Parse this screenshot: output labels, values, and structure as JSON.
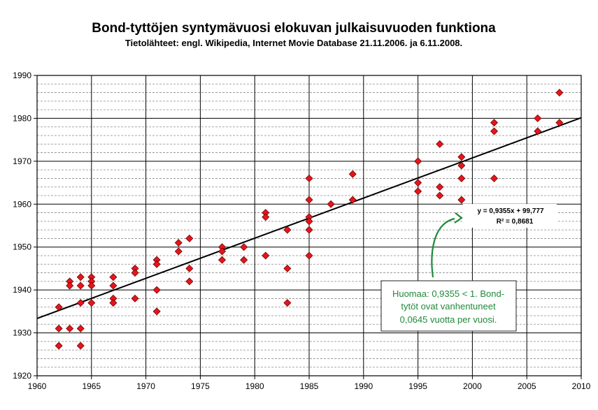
{
  "chart_data": {
    "type": "scatter",
    "title": "Bond-tyttöjen syntymävuosi elokuvan julkaisuvuoden funktiona",
    "subtitle": "Tietolähteet: engl. Wikipedia, Internet Movie Database 21.11.2006. ja 6.11.2008.",
    "xlabel": "",
    "ylabel": "",
    "xlim": [
      1960,
      2010
    ],
    "ylim": [
      1920,
      1990
    ],
    "x_ticks": [
      1960,
      1965,
      1970,
      1975,
      1980,
      1985,
      1990,
      1995,
      2000,
      2005,
      2010
    ],
    "y_ticks": [
      1920,
      1930,
      1940,
      1950,
      1960,
      1970,
      1980,
      1990
    ],
    "x_tick_labels": [
      "1960",
      "1965",
      "1970",
      "1975",
      "1980",
      "1985",
      "1990",
      "1995",
      "2000",
      "2005",
      "2010"
    ],
    "y_tick_labels": [
      "1920",
      "1930",
      "1940",
      "1950",
      "1960",
      "1970",
      "1980",
      "1990"
    ],
    "grid": true,
    "minor_y_grid_step": 2,
    "marker_color": "#e8141b",
    "marker_shape": "diamond",
    "points": [
      [
        1962,
        1936
      ],
      [
        1962,
        1931
      ],
      [
        1962,
        1927
      ],
      [
        1963,
        1942
      ],
      [
        1963,
        1941
      ],
      [
        1963,
        1931
      ],
      [
        1964,
        1943
      ],
      [
        1964,
        1941
      ],
      [
        1964,
        1937
      ],
      [
        1964,
        1931
      ],
      [
        1964,
        1927
      ],
      [
        1965,
        1943
      ],
      [
        1965,
        1942
      ],
      [
        1965,
        1941
      ],
      [
        1965,
        1937
      ],
      [
        1967,
        1943
      ],
      [
        1967,
        1941
      ],
      [
        1967,
        1938
      ],
      [
        1967,
        1937
      ],
      [
        1969,
        1945
      ],
      [
        1969,
        1944
      ],
      [
        1969,
        1938
      ],
      [
        1971,
        1947
      ],
      [
        1971,
        1946
      ],
      [
        1971,
        1940
      ],
      [
        1971,
        1935
      ],
      [
        1973,
        1951
      ],
      [
        1973,
        1949
      ],
      [
        1974,
        1952
      ],
      [
        1974,
        1945
      ],
      [
        1974,
        1942
      ],
      [
        1977,
        1950
      ],
      [
        1977,
        1949
      ],
      [
        1977,
        1947
      ],
      [
        1979,
        1950
      ],
      [
        1979,
        1947
      ],
      [
        1981,
        1958
      ],
      [
        1981,
        1957
      ],
      [
        1981,
        1948
      ],
      [
        1983,
        1954
      ],
      [
        1983,
        1945
      ],
      [
        1983,
        1937
      ],
      [
        1985,
        1966
      ],
      [
        1985,
        1961
      ],
      [
        1985,
        1957
      ],
      [
        1985,
        1956
      ],
      [
        1985,
        1954
      ],
      [
        1985,
        1948
      ],
      [
        1987,
        1960
      ],
      [
        1989,
        1967
      ],
      [
        1989,
        1961
      ],
      [
        1995,
        1970
      ],
      [
        1995,
        1965
      ],
      [
        1995,
        1963
      ],
      [
        1997,
        1974
      ],
      [
        1997,
        1964
      ],
      [
        1997,
        1962
      ],
      [
        1999,
        1971
      ],
      [
        1999,
        1969
      ],
      [
        1999,
        1966
      ],
      [
        1999,
        1961
      ],
      [
        2002,
        1979
      ],
      [
        2002,
        1977
      ],
      [
        2002,
        1966
      ],
      [
        2006,
        1980
      ],
      [
        2006,
        1977
      ],
      [
        2008,
        1986
      ],
      [
        2008,
        1979
      ]
    ],
    "trendline": {
      "slope": 0.9355,
      "intercept": 99.777,
      "x_range": [
        1960,
        2010
      ]
    },
    "equation_label": "y = 0,9355x + 99,777",
    "r2_label": "R² = 0,8681",
    "note_lines": [
      "Huomaa: 0,9355 < 1. Bond-",
      "tytöt ovat vanhentuneet",
      "0,0645 vuotta per vuosi."
    ],
    "note_color": "#1f8a3a"
  }
}
